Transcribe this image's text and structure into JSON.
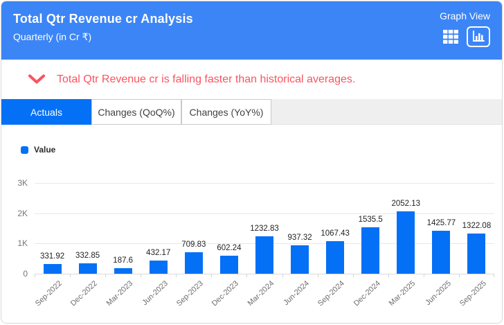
{
  "header": {
    "title": "Total Qtr Revenue cr Analysis",
    "subtitle": "Quarterly (in Cr ₹)",
    "view_label": "Graph View"
  },
  "insight": {
    "message": "Total Qtr Revenue cr is falling faster than historical averages."
  },
  "tabs": [
    {
      "label": "Actuals",
      "active": true
    },
    {
      "label": "Changes (QoQ%)",
      "active": false
    },
    {
      "label": "Changes (YoY%)",
      "active": false
    }
  ],
  "legend": {
    "label": "Value"
  },
  "colors": {
    "header_bg": "#3c85f6",
    "primary_blue": "#0470f5",
    "insight_red": "#fb5361",
    "gridline": "#e8e8e8"
  },
  "chart_data": {
    "type": "bar",
    "title": "Total Qtr Revenue cr Analysis",
    "xlabel": "",
    "ylabel": "",
    "categories": [
      "Sep-2022",
      "Dec-2022",
      "Mar-2023",
      "Jun-2023",
      "Sep-2023",
      "Dec-2023",
      "Mar-2024",
      "Jun-2024",
      "Sep-2024",
      "Dec-2024",
      "Mar-2025",
      "Jun-2025",
      "Sep-2025"
    ],
    "values": [
      331.92,
      332.85,
      187.6,
      432.17,
      709.83,
      602.24,
      1232.83,
      937.32,
      1067.43,
      1535.5,
      2052.13,
      1425.77,
      1322.08
    ],
    "value_labels": [
      "331.92",
      "332.85",
      "187.6",
      "432.17",
      "709.83",
      "602.24",
      "1232.83",
      "937.32",
      "1067.43",
      "1535.5",
      "2052.13",
      "1425.77",
      "1322.08"
    ],
    "ylim": [
      0,
      3000
    ],
    "yticks": [
      "0",
      "1K",
      "2K",
      "3K"
    ],
    "legend": [
      "Value"
    ],
    "legend_position": "top-left",
    "grid": true,
    "bar_color": "#0470f5"
  }
}
